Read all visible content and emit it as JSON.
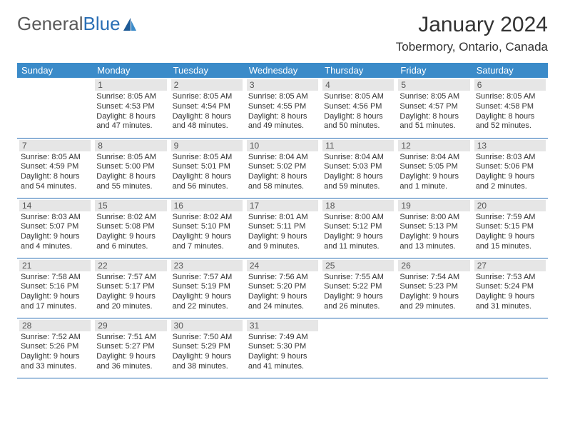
{
  "logo": {
    "text1": "General",
    "text2": "Blue"
  },
  "title": "January 2024",
  "location": "Tobermory, Ontario, Canada",
  "colors": {
    "header_bg": "#3b8bc9",
    "header_text": "#ffffff",
    "daynum_bg": "#e6e6e6",
    "daynum_text": "#555555",
    "body_text": "#333333",
    "rule": "#2a6fb5",
    "logo_gray": "#5a5a5a",
    "logo_blue": "#2a6fb5"
  },
  "daynames": [
    "Sunday",
    "Monday",
    "Tuesday",
    "Wednesday",
    "Thursday",
    "Friday",
    "Saturday"
  ],
  "weeks": [
    [
      {
        "n": "",
        "sr": "",
        "ss": "",
        "dl": "",
        "empty": true
      },
      {
        "n": "1",
        "sr": "Sunrise: 8:05 AM",
        "ss": "Sunset: 4:53 PM",
        "dl": "Daylight: 8 hours and 47 minutes."
      },
      {
        "n": "2",
        "sr": "Sunrise: 8:05 AM",
        "ss": "Sunset: 4:54 PM",
        "dl": "Daylight: 8 hours and 48 minutes."
      },
      {
        "n": "3",
        "sr": "Sunrise: 8:05 AM",
        "ss": "Sunset: 4:55 PM",
        "dl": "Daylight: 8 hours and 49 minutes."
      },
      {
        "n": "4",
        "sr": "Sunrise: 8:05 AM",
        "ss": "Sunset: 4:56 PM",
        "dl": "Daylight: 8 hours and 50 minutes."
      },
      {
        "n": "5",
        "sr": "Sunrise: 8:05 AM",
        "ss": "Sunset: 4:57 PM",
        "dl": "Daylight: 8 hours and 51 minutes."
      },
      {
        "n": "6",
        "sr": "Sunrise: 8:05 AM",
        "ss": "Sunset: 4:58 PM",
        "dl": "Daylight: 8 hours and 52 minutes."
      }
    ],
    [
      {
        "n": "7",
        "sr": "Sunrise: 8:05 AM",
        "ss": "Sunset: 4:59 PM",
        "dl": "Daylight: 8 hours and 54 minutes."
      },
      {
        "n": "8",
        "sr": "Sunrise: 8:05 AM",
        "ss": "Sunset: 5:00 PM",
        "dl": "Daylight: 8 hours and 55 minutes."
      },
      {
        "n": "9",
        "sr": "Sunrise: 8:05 AM",
        "ss": "Sunset: 5:01 PM",
        "dl": "Daylight: 8 hours and 56 minutes."
      },
      {
        "n": "10",
        "sr": "Sunrise: 8:04 AM",
        "ss": "Sunset: 5:02 PM",
        "dl": "Daylight: 8 hours and 58 minutes."
      },
      {
        "n": "11",
        "sr": "Sunrise: 8:04 AM",
        "ss": "Sunset: 5:03 PM",
        "dl": "Daylight: 8 hours and 59 minutes."
      },
      {
        "n": "12",
        "sr": "Sunrise: 8:04 AM",
        "ss": "Sunset: 5:05 PM",
        "dl": "Daylight: 9 hours and 1 minute."
      },
      {
        "n": "13",
        "sr": "Sunrise: 8:03 AM",
        "ss": "Sunset: 5:06 PM",
        "dl": "Daylight: 9 hours and 2 minutes."
      }
    ],
    [
      {
        "n": "14",
        "sr": "Sunrise: 8:03 AM",
        "ss": "Sunset: 5:07 PM",
        "dl": "Daylight: 9 hours and 4 minutes."
      },
      {
        "n": "15",
        "sr": "Sunrise: 8:02 AM",
        "ss": "Sunset: 5:08 PM",
        "dl": "Daylight: 9 hours and 6 minutes."
      },
      {
        "n": "16",
        "sr": "Sunrise: 8:02 AM",
        "ss": "Sunset: 5:10 PM",
        "dl": "Daylight: 9 hours and 7 minutes."
      },
      {
        "n": "17",
        "sr": "Sunrise: 8:01 AM",
        "ss": "Sunset: 5:11 PM",
        "dl": "Daylight: 9 hours and 9 minutes."
      },
      {
        "n": "18",
        "sr": "Sunrise: 8:00 AM",
        "ss": "Sunset: 5:12 PM",
        "dl": "Daylight: 9 hours and 11 minutes."
      },
      {
        "n": "19",
        "sr": "Sunrise: 8:00 AM",
        "ss": "Sunset: 5:13 PM",
        "dl": "Daylight: 9 hours and 13 minutes."
      },
      {
        "n": "20",
        "sr": "Sunrise: 7:59 AM",
        "ss": "Sunset: 5:15 PM",
        "dl": "Daylight: 9 hours and 15 minutes."
      }
    ],
    [
      {
        "n": "21",
        "sr": "Sunrise: 7:58 AM",
        "ss": "Sunset: 5:16 PM",
        "dl": "Daylight: 9 hours and 17 minutes."
      },
      {
        "n": "22",
        "sr": "Sunrise: 7:57 AM",
        "ss": "Sunset: 5:17 PM",
        "dl": "Daylight: 9 hours and 20 minutes."
      },
      {
        "n": "23",
        "sr": "Sunrise: 7:57 AM",
        "ss": "Sunset: 5:19 PM",
        "dl": "Daylight: 9 hours and 22 minutes."
      },
      {
        "n": "24",
        "sr": "Sunrise: 7:56 AM",
        "ss": "Sunset: 5:20 PM",
        "dl": "Daylight: 9 hours and 24 minutes."
      },
      {
        "n": "25",
        "sr": "Sunrise: 7:55 AM",
        "ss": "Sunset: 5:22 PM",
        "dl": "Daylight: 9 hours and 26 minutes."
      },
      {
        "n": "26",
        "sr": "Sunrise: 7:54 AM",
        "ss": "Sunset: 5:23 PM",
        "dl": "Daylight: 9 hours and 29 minutes."
      },
      {
        "n": "27",
        "sr": "Sunrise: 7:53 AM",
        "ss": "Sunset: 5:24 PM",
        "dl": "Daylight: 9 hours and 31 minutes."
      }
    ],
    [
      {
        "n": "28",
        "sr": "Sunrise: 7:52 AM",
        "ss": "Sunset: 5:26 PM",
        "dl": "Daylight: 9 hours and 33 minutes."
      },
      {
        "n": "29",
        "sr": "Sunrise: 7:51 AM",
        "ss": "Sunset: 5:27 PM",
        "dl": "Daylight: 9 hours and 36 minutes."
      },
      {
        "n": "30",
        "sr": "Sunrise: 7:50 AM",
        "ss": "Sunset: 5:29 PM",
        "dl": "Daylight: 9 hours and 38 minutes."
      },
      {
        "n": "31",
        "sr": "Sunrise: 7:49 AM",
        "ss": "Sunset: 5:30 PM",
        "dl": "Daylight: 9 hours and 41 minutes."
      },
      {
        "n": "",
        "sr": "",
        "ss": "",
        "dl": "",
        "empty": true
      },
      {
        "n": "",
        "sr": "",
        "ss": "",
        "dl": "",
        "empty": true
      },
      {
        "n": "",
        "sr": "",
        "ss": "",
        "dl": "",
        "empty": true
      }
    ]
  ]
}
